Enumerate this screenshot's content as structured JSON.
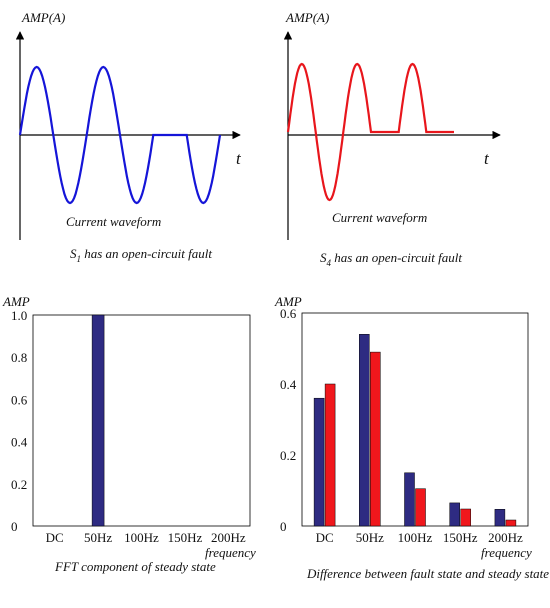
{
  "colors": {
    "blue": "#1515d8",
    "red": "#e8161c",
    "navy": "#2e2b82",
    "bar_red": "#f0171c"
  },
  "chart_data": [
    {
      "type": "line",
      "ylabel": "AMP(A)",
      "xlabel": "t",
      "subtitle": "Current waveform",
      "caption_prefix": "S",
      "caption_sub": "1",
      "caption_rest": " has an open-circuit fault",
      "series": [
        {
          "values": [
            1,
            -1,
            1,
            -1,
            0,
            -1
          ],
          "color_key": "blue"
        }
      ]
    },
    {
      "type": "line",
      "ylabel": "AMP(A)",
      "xlabel": "t",
      "subtitle": "Current waveform",
      "caption_prefix": "S",
      "caption_sub": "4",
      "caption_rest": " has an open-circuit fault",
      "series": [
        {
          "values": [
            1,
            -1,
            1,
            0,
            1,
            0
          ],
          "color_key": "red"
        }
      ]
    },
    {
      "type": "bar",
      "ylabel": "AMP",
      "xlabel": "frequency",
      "title": "FFT component of steady state",
      "categories": [
        "DC",
        "50Hz",
        "100Hz",
        "150Hz",
        "200Hz"
      ],
      "ylim": [
        0,
        1.0
      ],
      "yticks": [
        "0",
        "0.2",
        "0.4",
        "0.6",
        "0.8",
        "1.0"
      ],
      "series": [
        {
          "values": [
            0,
            1.0,
            0,
            0,
            0
          ],
          "color_key": "navy"
        }
      ]
    },
    {
      "type": "bar",
      "ylabel": "AMP",
      "xlabel": "frequency",
      "title": "Difference between fault state and steady state",
      "categories": [
        "DC",
        "50Hz",
        "100Hz",
        "150Hz",
        "200Hz"
      ],
      "ylim": [
        0,
        0.6
      ],
      "yticks": [
        "0",
        "0.2",
        "0.4",
        "0.6"
      ],
      "series": [
        {
          "values": [
            0.36,
            0.54,
            0.15,
            0.065,
            0.047
          ],
          "color_key": "navy"
        },
        {
          "values": [
            0.4,
            0.49,
            0.105,
            0.048,
            0.017
          ],
          "color_key": "bar_red"
        }
      ]
    }
  ]
}
